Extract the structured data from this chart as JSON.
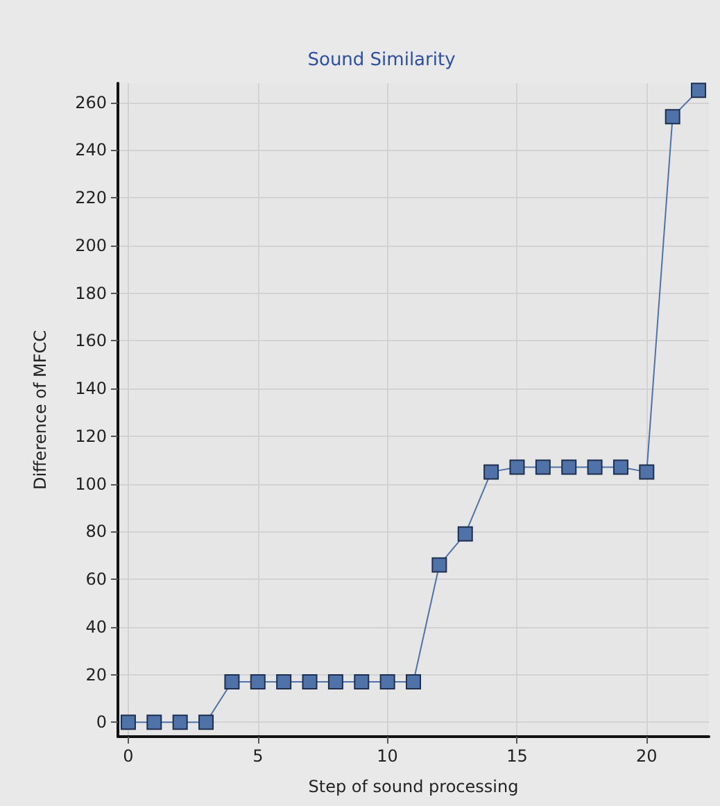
{
  "chart_data": {
    "type": "line",
    "title": "Sound Similarity",
    "xlabel": "Step of sound processing",
    "ylabel": "Difference of MFCC",
    "x": [
      0,
      1,
      2,
      3,
      4,
      5,
      6,
      7,
      8,
      9,
      10,
      11,
      12,
      13,
      14,
      15,
      16,
      17,
      18,
      19,
      20,
      21,
      22
    ],
    "series": [
      {
        "color": "#4f73a8",
        "values": [
          0,
          0,
          0,
          0,
          17,
          17,
          17,
          17,
          17,
          17,
          17,
          17,
          66,
          79,
          105,
          107,
          107,
          107,
          107,
          107,
          105,
          254,
          265
        ]
      }
    ],
    "xlim": [
      -0.4,
      22.4
    ],
    "xticks": [
      0,
      5,
      10,
      15,
      20
    ],
    "ylim": [
      -6,
      268
    ],
    "yticks": [
      0,
      20,
      40,
      60,
      80,
      100,
      120,
      140,
      160,
      180,
      200,
      220,
      240,
      260
    ],
    "grid": true,
    "marker": "square",
    "line_style": "solid"
  }
}
